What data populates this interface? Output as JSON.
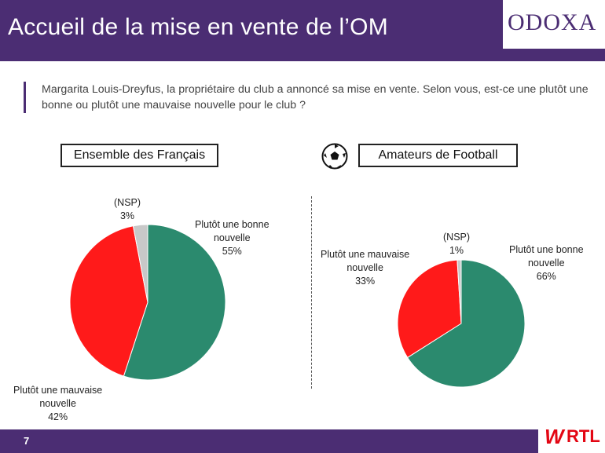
{
  "header": {
    "title": "Accueil de la mise en vente de l’OM",
    "logo": "ODOXA"
  },
  "question": "Margarita Louis-Dreyfus, la propriétaire du club a annoncé sa mise en vente. Selon vous, est-ce une plutôt une bonne ou plutôt une mauvaise nouvelle pour le club ?",
  "segments": {
    "left": "Ensemble des Français",
    "right": "Amateurs de Football"
  },
  "labels": {
    "left_nsp": "(NSP)",
    "left_nsp_val": "3%",
    "left_good_1": "Plutôt une bonne",
    "left_good_2": "nouvelle",
    "left_good_val": "55%",
    "left_bad_1": "Plutôt une mauvaise",
    "left_bad_2": "nouvelle",
    "left_bad_val": "42%",
    "right_nsp": "(NSP)",
    "right_nsp_val": "1%",
    "right_good_1": "Plutôt une bonne",
    "right_good_2": "nouvelle",
    "right_good_val": "66%",
    "right_bad_1": "Plutôt une mauvaise",
    "right_bad_2": "nouvelle",
    "right_bad_val": "33%"
  },
  "footer": {
    "page": "7",
    "brand_w": "W",
    "brand_rtl": "RTL"
  },
  "icons": {
    "ball": "football-icon"
  },
  "colors": {
    "good": "#2b8a6e",
    "bad": "#ff1a1a",
    "nsp": "#c8c8c8",
    "accent": "#4b2d73"
  },
  "chart_data": [
    {
      "type": "pie",
      "title": "Ensemble des Français",
      "categories": [
        "Plutôt une bonne nouvelle",
        "Plutôt une mauvaise nouvelle",
        "(NSP)"
      ],
      "values": [
        55,
        42,
        3
      ]
    },
    {
      "type": "pie",
      "title": "Amateurs de Football",
      "categories": [
        "Plutôt une bonne nouvelle",
        "Plutôt une mauvaise nouvelle",
        "(NSP)"
      ],
      "values": [
        66,
        33,
        1
      ]
    }
  ]
}
